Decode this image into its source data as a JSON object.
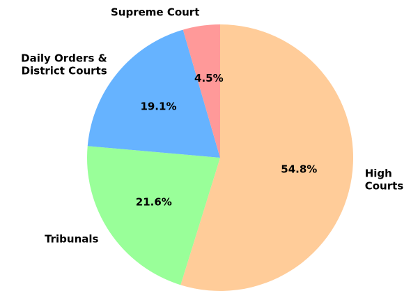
{
  "chart_data": {
    "type": "pie",
    "categories": [
      "High\nCourts",
      "Tribunals",
      "Daily Orders &\nDistrict Courts",
      "Supreme Court"
    ],
    "values": [
      54.8,
      21.6,
      19.1,
      4.5
    ],
    "value_labels": [
      "54.8%",
      "21.6%",
      "19.1%",
      "4.5%"
    ],
    "colors": [
      "#ffcc99",
      "#99ff99",
      "#66b3ff",
      "#ff9999"
    ]
  }
}
